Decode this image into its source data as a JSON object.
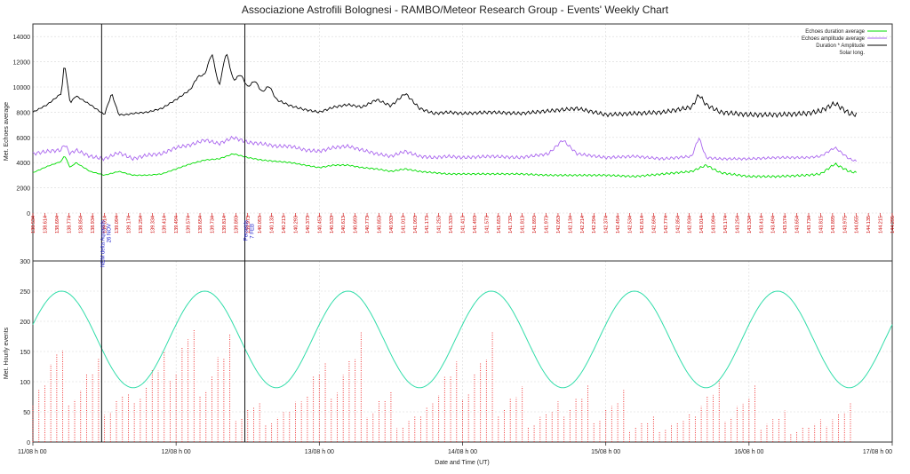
{
  "chart_data": {
    "title": "Associazione Astrofili Bolognesi - RAMBO/Meteor Research Group - Events' Weekly Chart",
    "xlabel": "Date and Time (UT)",
    "x_ticks": [
      "11/08 h 00",
      "12/08 h 00",
      "13/08 h 00",
      "14/08 h 00",
      "15/08 h 00",
      "16/08 h 00",
      "17/08 h 00"
    ],
    "x_range_days": [
      0,
      6
    ],
    "upper": {
      "type": "line",
      "ylabel": "Met. Echoes average",
      "ylim": [
        0,
        15000
      ],
      "y_ticks": [
        0,
        2000,
        4000,
        6000,
        8000,
        10000,
        12000,
        14000
      ],
      "legend": [
        {
          "name": "Echoes duration average",
          "color": "#00dd00"
        },
        {
          "name": "Echoes amplitude average",
          "color": "#aa66ee"
        },
        {
          "name": "Duration * Amplitude",
          "color": "#000000"
        },
        {
          "name": "Solar long.",
          "color": "#cc0000"
        }
      ],
      "legend_position": "top-right",
      "series": [
        {
          "name": "Duration * Amplitude",
          "color": "#000000",
          "x": [
            0,
            0.1,
            0.2,
            0.22,
            0.26,
            0.3,
            0.4,
            0.5,
            0.55,
            0.6,
            0.65,
            0.7,
            0.8,
            0.9,
            1.0,
            1.1,
            1.15,
            1.2,
            1.25,
            1.3,
            1.35,
            1.4,
            1.45,
            1.5,
            1.55,
            1.6,
            1.65,
            1.7,
            1.8,
            1.9,
            2.0,
            2.1,
            2.2,
            2.3,
            2.4,
            2.5,
            2.6,
            2.7,
            2.8,
            2.9,
            3.0,
            3.2,
            3.4,
            3.6,
            3.8,
            4.0,
            4.2,
            4.4,
            4.6,
            4.65,
            4.7,
            4.8,
            5.0,
            5.2,
            5.4,
            5.5,
            5.6,
            5.7,
            5.75
          ],
          "values": [
            8000,
            8600,
            9500,
            12000,
            8700,
            9300,
            8600,
            7800,
            9500,
            7800,
            7800,
            7900,
            8000,
            8300,
            9000,
            9800,
            10800,
            11000,
            12700,
            10000,
            12800,
            10500,
            11000,
            10000,
            10500,
            9600,
            10100,
            9000,
            8500,
            8200,
            8000,
            8400,
            8600,
            8400,
            9000,
            8500,
            9500,
            8300,
            7900,
            8000,
            7900,
            8000,
            7900,
            8100,
            8300,
            7800,
            7900,
            8000,
            8400,
            9400,
            8600,
            8000,
            7800,
            7800,
            7900,
            8100,
            8700,
            7900,
            7800
          ]
        },
        {
          "name": "Echoes amplitude average",
          "color": "#aa66ee",
          "x": [
            0,
            0.1,
            0.2,
            0.22,
            0.26,
            0.3,
            0.4,
            0.5,
            0.6,
            0.7,
            0.8,
            0.9,
            1.0,
            1.1,
            1.2,
            1.3,
            1.4,
            1.5,
            1.6,
            1.7,
            1.8,
            1.9,
            2.0,
            2.1,
            2.2,
            2.3,
            2.4,
            2.5,
            2.6,
            2.7,
            2.8,
            2.9,
            3.0,
            3.2,
            3.4,
            3.6,
            3.7,
            3.8,
            4.0,
            4.2,
            4.4,
            4.6,
            4.65,
            4.7,
            4.8,
            5.0,
            5.2,
            5.4,
            5.5,
            5.6,
            5.7,
            5.75
          ],
          "values": [
            4700,
            4900,
            5000,
            5500,
            4700,
            5000,
            4500,
            4300,
            4800,
            4300,
            4600,
            4700,
            5200,
            5400,
            5800,
            5500,
            6000,
            5600,
            5500,
            5300,
            5300,
            5000,
            4900,
            5200,
            5300,
            5000,
            4700,
            4500,
            4900,
            4500,
            4400,
            4500,
            4400,
            4500,
            4400,
            4700,
            5800,
            4700,
            4400,
            4500,
            4300,
            4500,
            6000,
            4400,
            4300,
            4300,
            4400,
            4400,
            4500,
            5200,
            4300,
            4100
          ]
        },
        {
          "name": "Echoes duration average",
          "color": "#00dd00",
          "x": [
            0,
            0.1,
            0.2,
            0.22,
            0.26,
            0.3,
            0.4,
            0.5,
            0.6,
            0.7,
            0.8,
            0.9,
            1.0,
            1.1,
            1.2,
            1.3,
            1.4,
            1.5,
            1.6,
            1.7,
            1.8,
            1.9,
            2.0,
            2.1,
            2.2,
            2.3,
            2.4,
            2.5,
            2.6,
            2.7,
            2.8,
            2.9,
            3.0,
            3.2,
            3.4,
            3.6,
            3.8,
            4.0,
            4.2,
            4.4,
            4.6,
            4.7,
            4.8,
            5.0,
            5.2,
            5.4,
            5.5,
            5.6,
            5.7,
            5.75
          ],
          "values": [
            3200,
            3700,
            4100,
            4600,
            3600,
            4000,
            3300,
            3000,
            3300,
            3000,
            3000,
            3100,
            3500,
            3900,
            4200,
            4300,
            4700,
            4400,
            4200,
            4100,
            4000,
            3800,
            3600,
            3800,
            3800,
            3600,
            3500,
            3300,
            3500,
            3300,
            3200,
            3100,
            3100,
            3100,
            3100,
            3000,
            3000,
            3000,
            2900,
            3100,
            3300,
            3800,
            3200,
            2900,
            2900,
            3000,
            3100,
            3900,
            3300,
            3200
          ]
        }
      ],
      "solar_long_labels": [
        "138.534",
        "138.614",
        "138.694",
        "138.774",
        "138.854",
        "138.934",
        "139.014",
        "139.094",
        "139.174",
        "139.254",
        "139.334",
        "139.414",
        "139.494",
        "139.574",
        "139.654",
        "139.734",
        "139.814",
        "139.893",
        "139.973",
        "140.053",
        "140.133",
        "140.213",
        "140.293",
        "140.373",
        "140.453",
        "140.533",
        "140.613",
        "140.693",
        "140.773",
        "140.853",
        "140.933",
        "141.013",
        "141.093",
        "141.173",
        "141.253",
        "141.333",
        "141.413",
        "141.493",
        "141.573",
        "141.653",
        "141.733",
        "141.813",
        "141.893",
        "141.973",
        "142.053",
        "142.134",
        "142.214",
        "142.294",
        "142.374",
        "142.454",
        "142.534",
        "142.614",
        "142.694",
        "142.774",
        "142.854",
        "142.934",
        "143.014",
        "143.094",
        "143.174",
        "143.254",
        "143.334",
        "143.414",
        "143.494",
        "143.574",
        "143.654",
        "143.734",
        "143.815",
        "143.895",
        "143.975",
        "144.055",
        "144.135",
        "144.215",
        "144.295"
      ],
      "annotations": [
        {
          "x_day": 0.48,
          "text": "NEM delta Aquarids",
          "text2": "26 NOV"
        },
        {
          "x_day": 1.48,
          "text": "Perseids",
          "text2": "7 FEB"
        }
      ]
    },
    "lower": {
      "type": "bar",
      "ylabel": "Met. Hourly events",
      "ylim": [
        0,
        300
      ],
      "y_ticks": [
        0,
        50,
        100,
        150,
        200,
        250,
        300
      ],
      "hourly_peaks": [
        190,
        150,
        100,
        160,
        230,
        190,
        80,
        70,
        160,
        190,
        100,
        60,
        160,
        190,
        110,
        70,
        110,
        90,
        50,
        50,
        120,
        100,
        60,
        40,
        75
      ],
      "sine": {
        "name": "Solar elevation",
        "color": "#33ddaa",
        "min": 90,
        "max": 250,
        "period_days": 1,
        "peak_day_offset": 0.2
      }
    }
  }
}
